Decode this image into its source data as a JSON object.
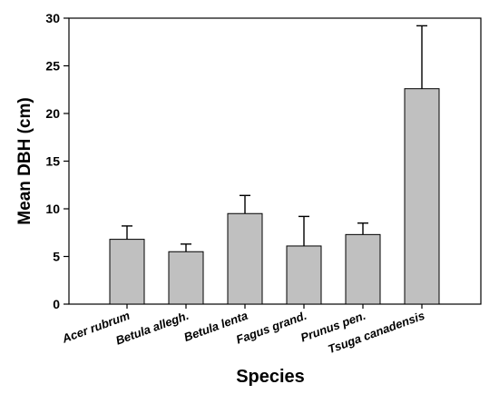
{
  "chart_data": {
    "type": "bar",
    "categories": [
      "Acer rubrum",
      "Betula allegh.",
      "Betula lenta",
      "Fagus grand.",
      "Prunus pen.",
      "Tsuga canadensis"
    ],
    "values": [
      6.8,
      5.5,
      9.5,
      6.1,
      7.3,
      22.6
    ],
    "error_upper": [
      1.4,
      0.8,
      1.9,
      3.1,
      1.2,
      6.6
    ],
    "title": "",
    "xlabel": "Species",
    "ylabel": "Mean DBH (cm)",
    "ylim": [
      0,
      30
    ],
    "yticks": [
      "0",
      "5",
      "10",
      "15",
      "20",
      "25",
      "30"
    ],
    "grid": false,
    "legend": "none",
    "colors": {
      "bar_fill": "#c0c0c0",
      "bar_stroke": "#000000",
      "axis": "#000000"
    }
  }
}
